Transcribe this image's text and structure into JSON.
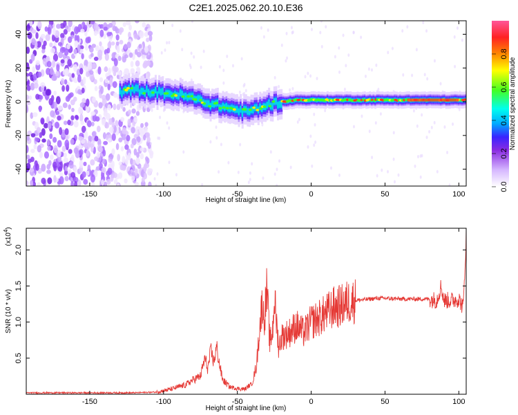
{
  "title": "C2E1.2025.062.20.10.E36",
  "chart_data": [
    {
      "type": "heatmap",
      "xlabel": "Height of straight line (km)",
      "ylabel": "Frequency (Hz)",
      "xlim": [
        -193,
        105
      ],
      "ylim": [
        -50,
        48
      ],
      "xticks": [
        -150,
        -100,
        -50,
        0,
        50,
        100
      ],
      "yticks": [
        -40,
        -20,
        0,
        20,
        40
      ],
      "colorbar": {
        "label": "Normalized spectral amplitude",
        "range": [
          0,
          1
        ],
        "ticks": [
          0.0,
          0.2,
          0.4,
          0.6,
          0.8
        ]
      },
      "ridge": {
        "height_km": [
          -130,
          -120,
          -110,
          -100,
          -90,
          -80,
          -70,
          -60,
          -50,
          -45,
          -40,
          -30,
          -20,
          -10,
          0,
          20,
          40,
          60,
          80,
          100,
          105
        ],
        "frequency_hz": [
          6,
          7,
          6,
          5,
          4,
          2,
          -1,
          -3,
          -5,
          -6,
          -5,
          -2,
          0,
          1,
          1,
          1,
          1,
          1,
          1,
          1,
          1
        ]
      }
    },
    {
      "type": "line",
      "xlabel": "Height of straight line (km)",
      "ylabel": "SNR (10 * v/v)",
      "y_multiplier": "(x10",
      "y_multiplier_exp": "4",
      "xlim": [
        -193,
        105
      ],
      "ylim": [
        0,
        2.3
      ],
      "xticks": [
        -150,
        -100,
        -50,
        0,
        50,
        100
      ],
      "yticks": [
        0.5,
        1.0,
        1.5,
        2.0
      ],
      "ytick_labels": [
        "0.5",
        "1.0",
        "1.5",
        "2.0"
      ],
      "line_color": "#e53935",
      "series": [
        {
          "x": [
            -193,
            -150,
            -120,
            -105,
            -100,
            -95,
            -90,
            -85,
            -80,
            -75,
            -72,
            -70,
            -68,
            -66,
            -64,
            -62,
            -60,
            -55,
            -50,
            -45,
            -40,
            -37,
            -35,
            -33,
            -32,
            -30,
            -28,
            -26,
            -25,
            -22,
            -20,
            -15,
            -10,
            -5,
            0,
            5,
            10,
            15,
            20,
            25,
            30,
            35,
            40,
            45,
            50,
            60,
            70,
            80,
            85,
            88,
            90,
            95,
            100,
            103,
            105
          ],
          "y": [
            0.02,
            0.02,
            0.02,
            0.03,
            0.05,
            0.07,
            0.1,
            0.13,
            0.2,
            0.25,
            0.5,
            0.35,
            0.6,
            0.45,
            0.65,
            0.4,
            0.2,
            0.1,
            0.08,
            0.07,
            0.15,
            0.4,
            0.9,
            1.3,
            1.0,
            1.45,
            0.7,
            0.9,
            1.35,
            0.65,
            0.8,
            0.85,
            0.95,
            0.85,
            1.0,
            1.05,
            1.12,
            1.2,
            1.22,
            1.28,
            1.3,
            1.31,
            1.32,
            1.33,
            1.33,
            1.32,
            1.32,
            1.32,
            1.3,
            1.5,
            1.3,
            1.3,
            1.32,
            1.2,
            2.2
          ]
        }
      ]
    }
  ]
}
